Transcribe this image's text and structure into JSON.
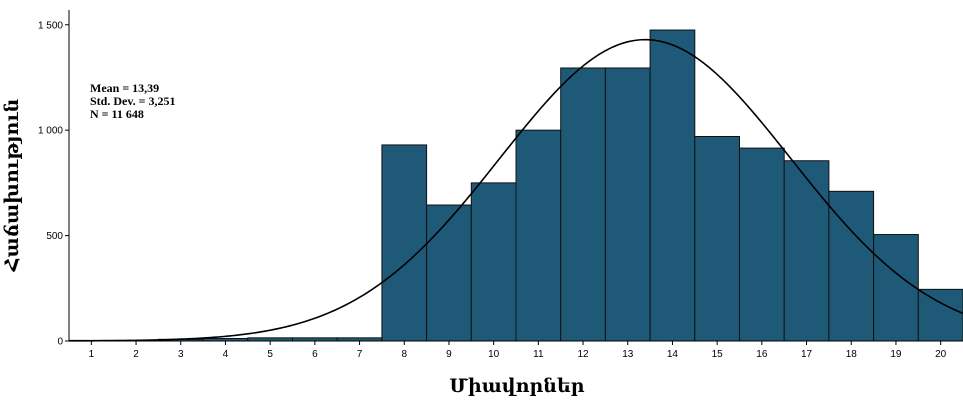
{
  "chart_data": {
    "type": "histogram",
    "title": "",
    "xlabel": "Միավորներ",
    "ylabel": "Հաճախություն",
    "x_ticks": [
      "1",
      "2",
      "3",
      "4",
      "5",
      "6",
      "7",
      "8",
      "9",
      "10",
      "11",
      "12",
      "13",
      "14",
      "15",
      "16",
      "17",
      "18",
      "19",
      "20"
    ],
    "y_ticks": [
      {
        "value": 0,
        "label": "0"
      },
      {
        "value": 500,
        "label": "500"
      },
      {
        "value": 1000,
        "label": "1 000"
      },
      {
        "value": 1500,
        "label": "1 500"
      }
    ],
    "xlim": [
      0.5,
      20.5
    ],
    "ylim": [
      0,
      1570
    ],
    "bins": [
      {
        "x": 1,
        "value": 3
      },
      {
        "x": 2,
        "value": 3
      },
      {
        "x": 3,
        "value": 8
      },
      {
        "x": 4,
        "value": 12
      },
      {
        "x": 5,
        "value": 15
      },
      {
        "x": 6,
        "value": 15
      },
      {
        "x": 7,
        "value": 15
      },
      {
        "x": 8,
        "value": 930
      },
      {
        "x": 9,
        "value": 645
      },
      {
        "x": 10,
        "value": 750
      },
      {
        "x": 11,
        "value": 1000
      },
      {
        "x": 12,
        "value": 1295
      },
      {
        "x": 13,
        "value": 1295
      },
      {
        "x": 14,
        "value": 1475
      },
      {
        "x": 15,
        "value": 970
      },
      {
        "x": 16,
        "value": 915
      },
      {
        "x": 17,
        "value": 855
      },
      {
        "x": 18,
        "value": 710
      },
      {
        "x": 19,
        "value": 505
      },
      {
        "x": 20,
        "value": 245
      }
    ],
    "normal_curve": {
      "mean": 13.39,
      "sd": 3.251,
      "n": 11648,
      "bin_width": 1
    },
    "stats": [
      "Mean = 13,39",
      "Std. Dev. = 3,251",
      "N = 11 648"
    ],
    "bar_color": "#1e5a78",
    "bar_stroke": "#111111"
  }
}
